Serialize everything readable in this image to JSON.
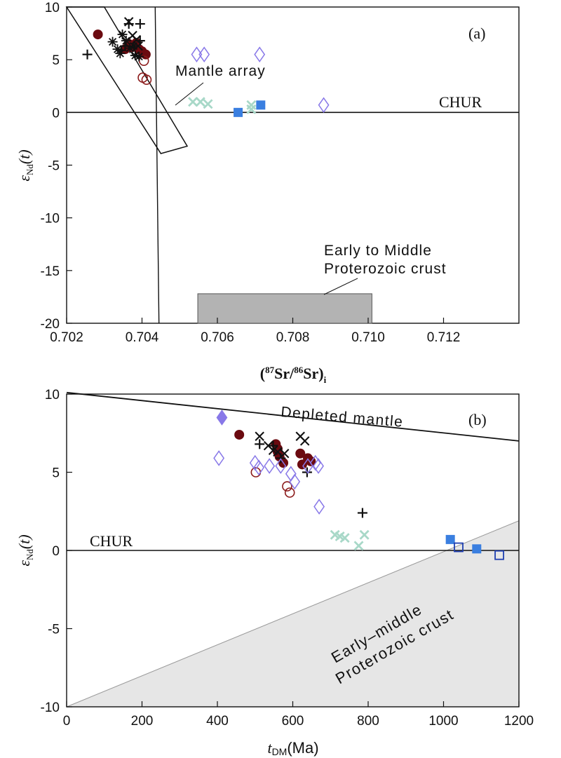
{
  "chart_data": [
    {
      "type": "scatter",
      "panel_label": "(a)",
      "xlabel_parts": {
        "open": "(",
        "iso1": "87",
        "el1": "Sr/",
        "iso2": "86",
        "el2": "Sr)",
        "sub": "i"
      },
      "ylabel_parts": {
        "sym": "ε",
        "sub": "Nd",
        "rest": "(t)"
      },
      "xlim": [
        0.702,
        0.714
      ],
      "ylim": [
        -20,
        10
      ],
      "xticks": [
        0.702,
        0.704,
        0.706,
        0.708,
        0.71,
        0.712
      ],
      "xtick_labels": [
        "0.702",
        "0.704",
        "0.706",
        "0.708",
        "0.710",
        "0.712"
      ],
      "yticks": [
        10,
        5,
        0,
        -5,
        -10,
        -15,
        -20
      ],
      "ytick_labels": [
        "10",
        "5",
        "0",
        "-5",
        "-10",
        "-15",
        "-20"
      ],
      "reference_line": {
        "label": "CHUR",
        "y": 0
      },
      "mantle_array": {
        "label": "Mantle array",
        "polygon": [
          [
            0.702,
            10
          ],
          [
            0.703,
            10
          ],
          [
            0.7052,
            -3.2
          ],
          [
            0.7045,
            -3.9
          ]
        ]
      },
      "divider_line": {
        "points": [
          [
            0.70435,
            10
          ],
          [
            0.70445,
            -20
          ]
        ]
      },
      "crust_field": {
        "label_line1": "Early to Middle",
        "label_line2": "Proterozoic crust",
        "x_range": [
          0.70548,
          0.7101
        ],
        "y_range": [
          -20,
          -17.2
        ]
      },
      "series": [
        {
          "name": "filled-circle",
          "color": "#6b0a10",
          "points": [
            [
              0.70283,
              7.4
            ],
            [
              0.70375,
              6.2
            ],
            [
              0.70385,
              6.6
            ],
            [
              0.70392,
              6.0
            ],
            [
              0.704,
              5.8
            ],
            [
              0.7041,
              5.5
            ],
            [
              0.70365,
              6.5
            ],
            [
              0.70355,
              6.0
            ]
          ]
        },
        {
          "name": "open-circle",
          "color": "#8b1a1a",
          "points": [
            [
              0.70405,
              4.9
            ],
            [
              0.70402,
              3.3
            ],
            [
              0.70412,
              3.1
            ]
          ]
        },
        {
          "name": "plus",
          "color": "#111111",
          "points": [
            [
              0.70255,
              5.5
            ],
            [
              0.70365,
              8.4
            ],
            [
              0.70395,
              8.4
            ],
            [
              0.70345,
              5.9
            ],
            [
              0.70355,
              6.3
            ],
            [
              0.70395,
              6.8
            ]
          ]
        },
        {
          "name": "cross",
          "color": "#111111",
          "points": [
            [
              0.70365,
              8.6
            ],
            [
              0.70375,
              7.3
            ],
            [
              0.70385,
              6.9
            ],
            [
              0.7039,
              6.3
            ]
          ]
        },
        {
          "name": "asterisk",
          "color": "#111111",
          "points": [
            [
              0.70322,
              6.7
            ],
            [
              0.70335,
              6.0
            ],
            [
              0.70348,
              7.4
            ],
            [
              0.70358,
              6.8
            ],
            [
              0.70368,
              6.1
            ],
            [
              0.70382,
              5.4
            ],
            [
              0.70392,
              5.3
            ],
            [
              0.70342,
              5.6
            ],
            [
              0.70378,
              6.3
            ]
          ]
        },
        {
          "name": "open-diamond",
          "color": "#8878e8",
          "points": [
            [
              0.70545,
              5.5
            ],
            [
              0.70565,
              5.5
            ],
            [
              0.70712,
              5.5
            ],
            [
              0.70882,
              0.7
            ]
          ]
        },
        {
          "name": "pale-cross",
          "color": "#a8d8c8",
          "points": [
            [
              0.70535,
              1.0
            ],
            [
              0.70555,
              1.0
            ],
            [
              0.70575,
              0.8
            ],
            [
              0.7069,
              0.7
            ],
            [
              0.7069,
              0.3
            ]
          ]
        },
        {
          "name": "filled-square",
          "color": "#3a7fe0",
          "points": [
            [
              0.70655,
              0.0
            ],
            [
              0.70715,
              0.7
            ]
          ]
        }
      ]
    },
    {
      "type": "scatter",
      "panel_label": "(b)",
      "xlabel_parts": {
        "sym": "t",
        "sub": "DM",
        "rest": "(Ma)"
      },
      "ylabel_parts": {
        "sym": "ε",
        "sub": "Nd",
        "rest": "(t)"
      },
      "xlim": [
        0,
        1200
      ],
      "ylim": [
        -10,
        10
      ],
      "xticks": [
        0,
        200,
        400,
        600,
        800,
        1000,
        1200
      ],
      "xtick_labels": [
        "0",
        "200",
        "400",
        "600",
        "800",
        "1000",
        "1200"
      ],
      "yticks": [
        10,
        5,
        0,
        -5,
        -10
      ],
      "ytick_labels": [
        "10",
        "5",
        "0",
        "-5",
        "-10"
      ],
      "reference_line": {
        "label": "CHUR",
        "y": 0
      },
      "depleted_mantle": {
        "label": "Depleted mantle",
        "points": [
          [
            0,
            10.1
          ],
          [
            1200,
            7.0
          ]
        ]
      },
      "crust_field": {
        "label_line1": "Early–middle",
        "label_line2": "Proterozoic crust",
        "polygon": [
          [
            0,
            -10
          ],
          [
            1200,
            1.9
          ],
          [
            1200,
            -10
          ]
        ]
      },
      "series": [
        {
          "name": "filled-circle",
          "color": "#6b0a10",
          "points": [
            [
              458,
              7.4
            ],
            [
              555,
              6.8
            ],
            [
              560,
              6.3
            ],
            [
              565,
              6.0
            ],
            [
              575,
              5.6
            ],
            [
              620,
              6.2
            ],
            [
              625,
              5.5
            ],
            [
              640,
              5.9
            ],
            [
              648,
              5.7
            ],
            [
              560,
              6.5
            ]
          ]
        },
        {
          "name": "open-circle",
          "color": "#8b1a1a",
          "points": [
            [
              502,
              5.0
            ],
            [
              585,
              4.1
            ],
            [
              592,
              3.7
            ]
          ]
        },
        {
          "name": "plus",
          "color": "#111111",
          "points": [
            [
              512,
              6.8
            ],
            [
              568,
              5.9
            ],
            [
              638,
              5.0
            ],
            [
              785,
              2.4
            ],
            [
              548,
              6.7
            ]
          ]
        },
        {
          "name": "cross",
          "color": "#111111",
          "points": [
            [
              512,
              7.3
            ],
            [
              535,
              6.7
            ],
            [
              548,
              6.4
            ],
            [
              560,
              6.3
            ],
            [
              578,
              6.2
            ],
            [
              620,
              7.3
            ],
            [
              632,
              7.0
            ]
          ]
        },
        {
          "name": "open-diamond",
          "color": "#8878e8",
          "points": [
            [
              404,
              5.9
            ],
            [
              500,
              5.6
            ],
            [
              510,
              5.3
            ],
            [
              538,
              5.4
            ],
            [
              568,
              5.4
            ],
            [
              595,
              4.9
            ],
            [
              605,
              4.4
            ],
            [
              640,
              5.4
            ],
            [
              660,
              5.6
            ],
            [
              668,
              5.4
            ],
            [
              670,
              2.8
            ]
          ]
        },
        {
          "name": "filled-diamond",
          "color": "#8878e8",
          "points": [
            [
              412,
              8.5
            ]
          ]
        },
        {
          "name": "pale-cross",
          "color": "#a8d8c8",
          "points": [
            [
              712,
              1.0
            ],
            [
              725,
              0.9
            ],
            [
              738,
              0.8
            ],
            [
              775,
              0.3
            ],
            [
              790,
              1.0
            ]
          ]
        },
        {
          "name": "filled-square",
          "color": "#3a7fe0",
          "points": [
            [
              1018,
              0.7
            ],
            [
              1088,
              0.1
            ]
          ]
        },
        {
          "name": "open-square",
          "color": "#1f3fb0",
          "points": [
            [
              1040,
              0.2
            ],
            [
              1148,
              -0.3
            ]
          ]
        }
      ]
    }
  ]
}
